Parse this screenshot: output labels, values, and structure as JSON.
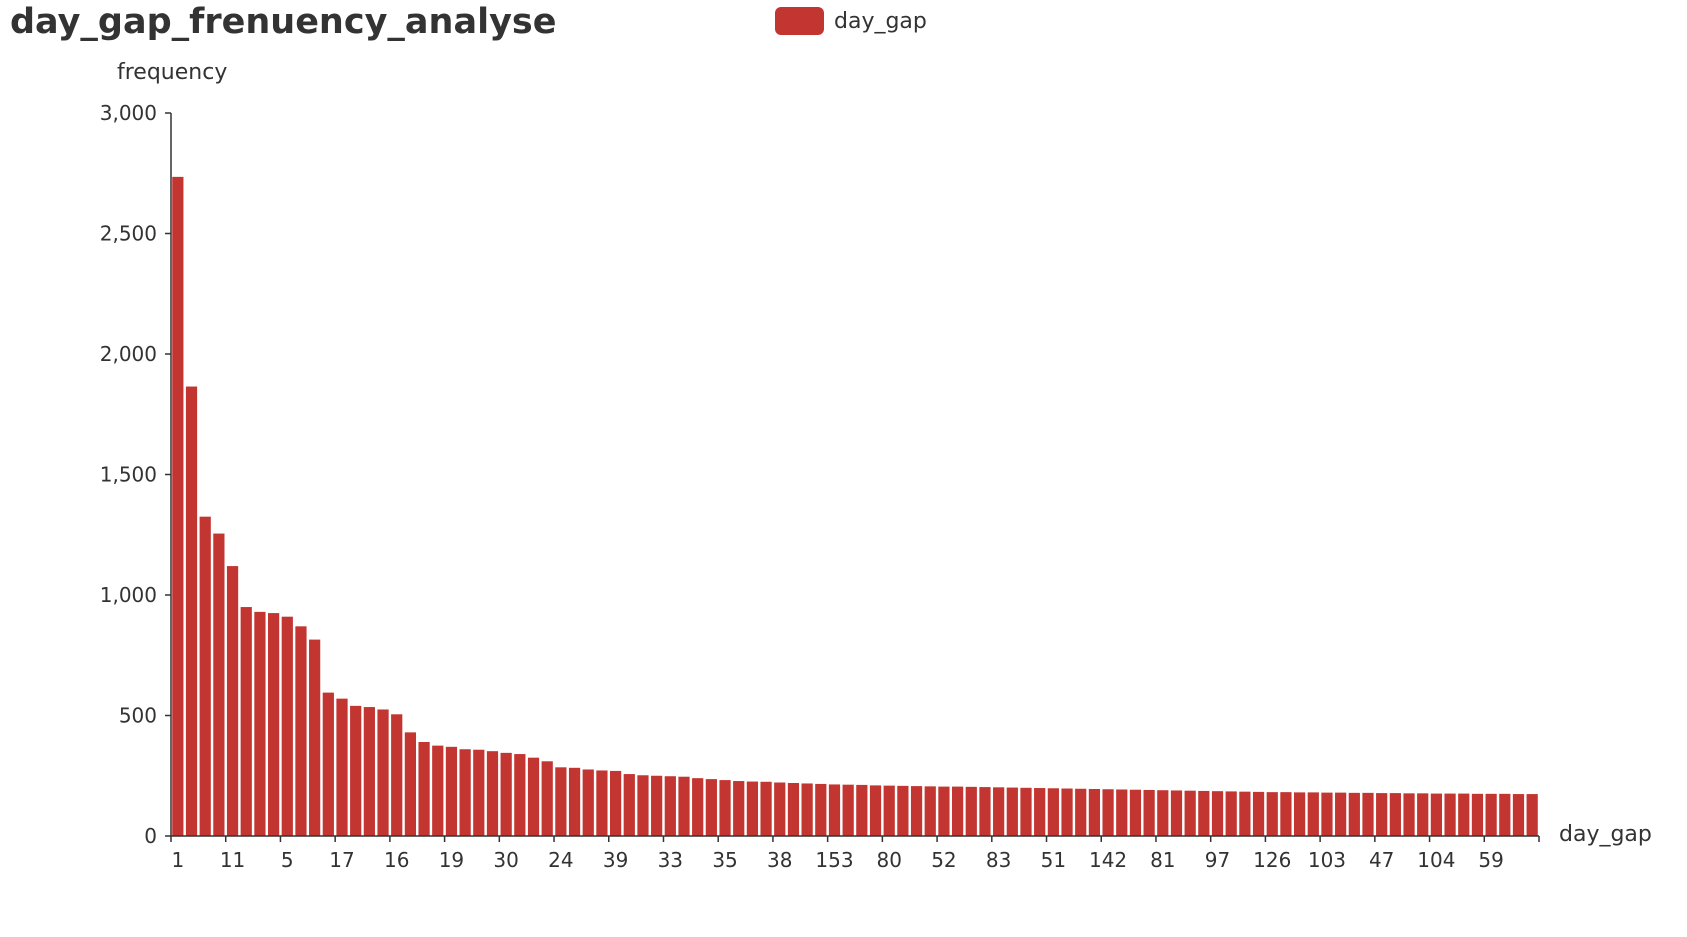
{
  "chart_data": {
    "type": "bar",
    "title": "day_gap_frenuency_analyse",
    "xlabel": "day_gap",
    "ylabel": "frequency",
    "legend": {
      "entries": [
        "day_gap"
      ],
      "position": "top-center"
    },
    "ylim": [
      0,
      3000
    ],
    "yticks": [
      "0",
      "500",
      "1,000",
      "1,500",
      "2,000",
      "2,500",
      "3,000"
    ],
    "x_tick_labels": [
      "1",
      "11",
      "5",
      "17",
      "16",
      "19",
      "30",
      "24",
      "39",
      "33",
      "35",
      "38",
      "153",
      "80",
      "52",
      "83",
      "51",
      "142",
      "81",
      "97",
      "126",
      "103",
      "47",
      "104",
      "59"
    ],
    "grid": false,
    "series": [
      {
        "name": "day_gap",
        "color": "#c23531",
        "values": [
          2735,
          1865,
          1325,
          1255,
          1120,
          950,
          930,
          925,
          910,
          870,
          815,
          595,
          570,
          540,
          535,
          525,
          505,
          430,
          390,
          375,
          370,
          360,
          358,
          352,
          345,
          340,
          325,
          310,
          285,
          283,
          276,
          272,
          270,
          257,
          252,
          250,
          248,
          246,
          240,
          236,
          232,
          228,
          226,
          225,
          222,
          220,
          218,
          216,
          214,
          213,
          212,
          210,
          209,
          208,
          207,
          206,
          205,
          205,
          204,
          203,
          202,
          201,
          200,
          199,
          198,
          197,
          196,
          195,
          194,
          193,
          192,
          191,
          190,
          189,
          188,
          187,
          186,
          185,
          184,
          183,
          182,
          182,
          181,
          181,
          180,
          180,
          179,
          179,
          178,
          178,
          177,
          177,
          176,
          176,
          176,
          175,
          175,
          175,
          174,
          174
        ]
      }
    ]
  }
}
